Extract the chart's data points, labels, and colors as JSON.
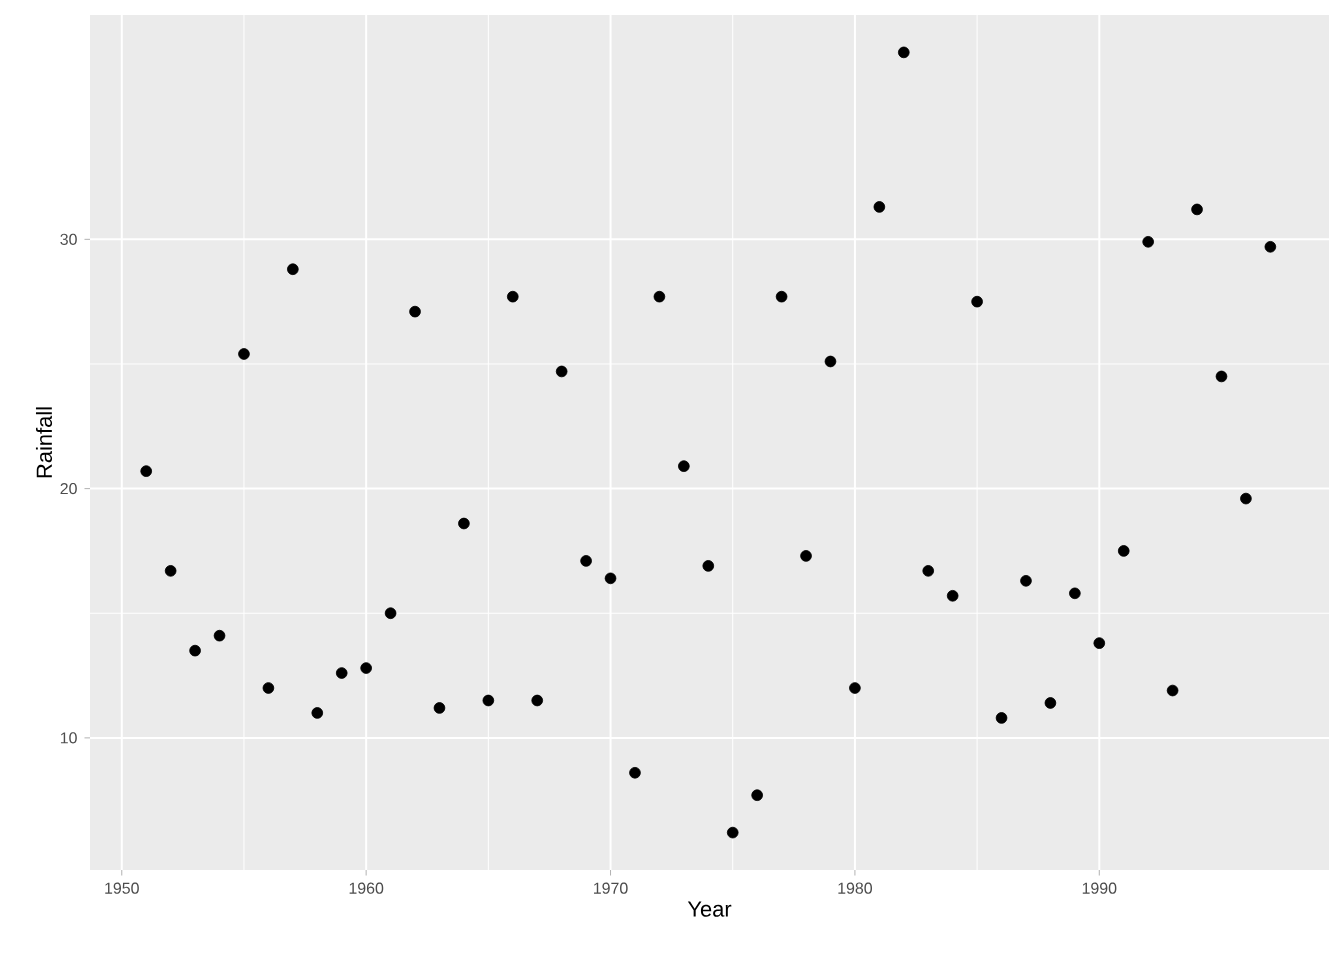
{
  "chart_data": {
    "type": "scatter",
    "xlabel": "Year",
    "ylabel": "Rainfall",
    "color": "#000000",
    "marker": "circle",
    "grid": true,
    "x": [
      1951,
      1952,
      1953,
      1954,
      1955,
      1956,
      1957,
      1958,
      1959,
      1960,
      1961,
      1962,
      1963,
      1964,
      1965,
      1966,
      1967,
      1968,
      1969,
      1970,
      1971,
      1972,
      1973,
      1974,
      1975,
      1976,
      1977,
      1978,
      1979,
      1980,
      1981,
      1982,
      1983,
      1984,
      1985,
      1986,
      1987,
      1988,
      1989,
      1990,
      1991,
      1992,
      1993,
      1994,
      1995,
      1996,
      1997
    ],
    "values": [
      20.7,
      16.7,
      13.5,
      14.1,
      25.4,
      12.0,
      28.8,
      11.0,
      12.6,
      12.8,
      15.0,
      27.1,
      11.2,
      18.6,
      11.5,
      27.7,
      11.5,
      24.7,
      17.1,
      16.4,
      8.6,
      27.7,
      20.9,
      16.9,
      6.2,
      7.7,
      27.7,
      17.3,
      25.1,
      12.0,
      31.3,
      37.5,
      16.7,
      15.7,
      27.5,
      10.8,
      16.3,
      11.4,
      15.8,
      13.8,
      17.5,
      29.9,
      11.9,
      31.2,
      24.5,
      19.6,
      29.7
    ],
    "xlim": [
      1948.7,
      1999.4
    ],
    "ylim": [
      4.7,
      39.0
    ],
    "xticks": [
      1950,
      1960,
      1970,
      1980,
      1990
    ],
    "yticks": [
      10,
      20,
      30
    ]
  }
}
